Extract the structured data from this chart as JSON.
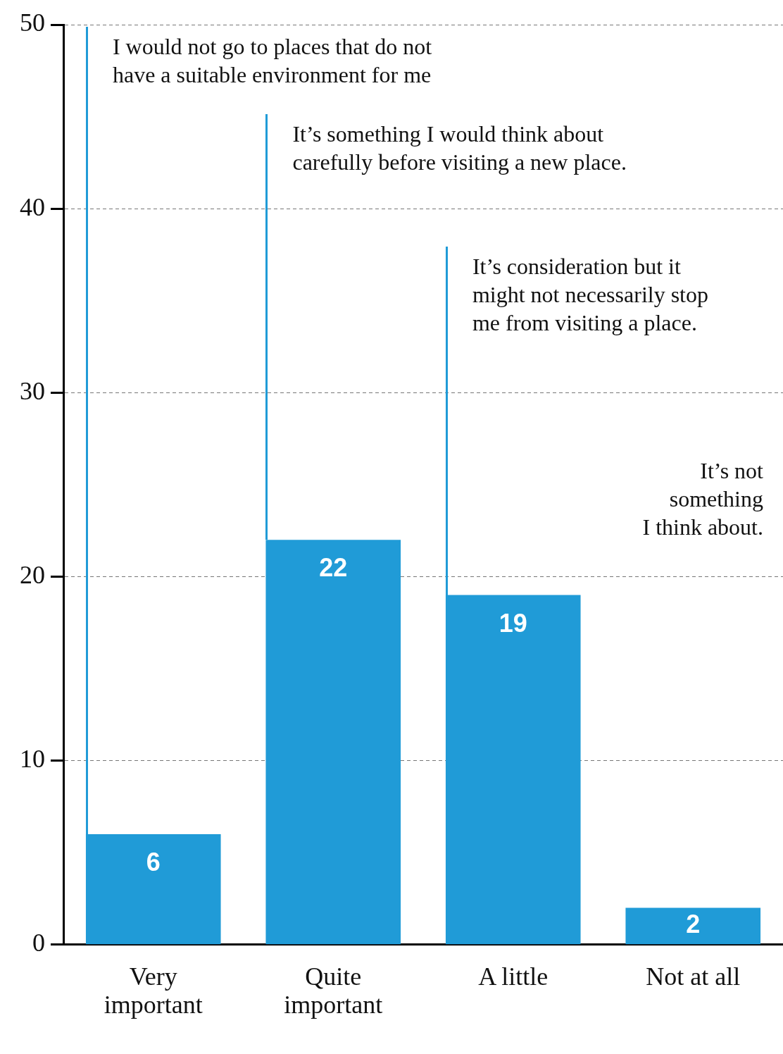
{
  "chart_data": {
    "type": "bar",
    "categories": [
      "Very important",
      "Quite important",
      "A little",
      "Not at all"
    ],
    "values": [
      6,
      22,
      19,
      2
    ],
    "color": "#209bd7",
    "ylim": [
      0,
      50
    ],
    "yticks": [
      0,
      10,
      20,
      30,
      40,
      50
    ],
    "grid": "y",
    "data_labels": true,
    "annotations": [
      "I would not go to places that do not\nhave a suitable environment for me",
      "It’s something I would think about\ncarefully before visiting a new place.",
      "It’s consideration but it\nmight not necessarily stop\nme from visiting a place.",
      "It’s not\nsomething\nI think about."
    ]
  }
}
